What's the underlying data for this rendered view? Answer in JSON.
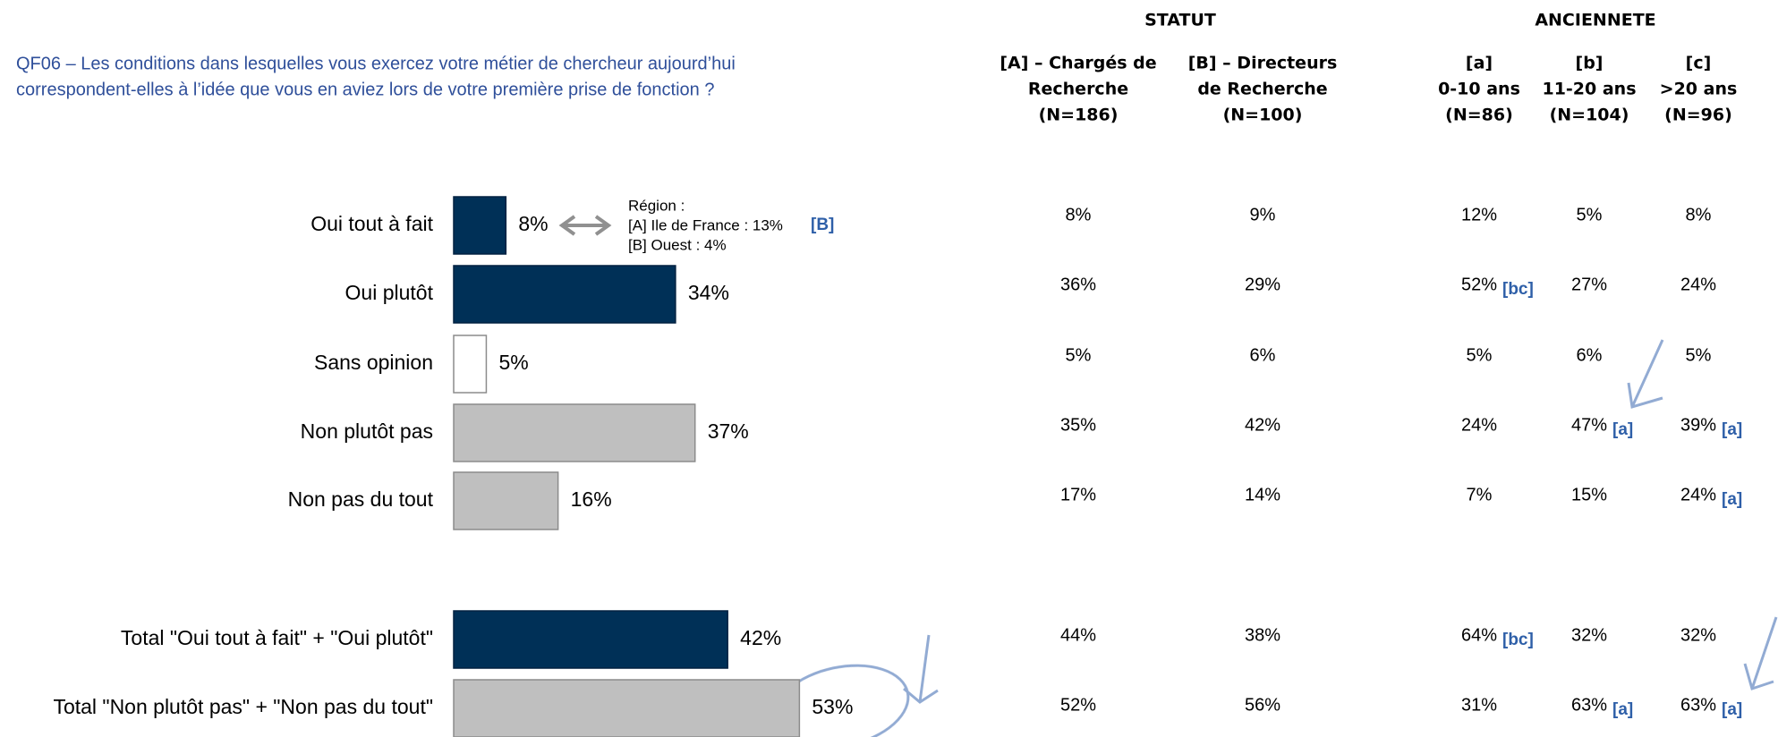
{
  "chart_data": {
    "type": "bar",
    "question": [
      "QF06  – Les conditions dans lesquelles vous exercez votre métier de chercheur aujourd’hui",
      "correspondent-elles à l’idée que vous en aviez lors de votre première prise de fonction ?"
    ],
    "categories": [
      "Oui tout à fait",
      "Oui plutôt",
      "Sans opinion",
      "Non plutôt pas",
      "Non pas du tout",
      "Total \"Oui tout à fait\" + \"Oui plutôt\"",
      "Total \"Non plutôt pas\" + \"Non pas du tout\""
    ],
    "values": [
      8,
      34,
      5,
      37,
      16,
      42,
      53
    ],
    "value_labels": [
      "8%",
      "34%",
      "5%",
      "37%",
      "16%",
      "42%",
      "53%"
    ],
    "colors": [
      "#003057",
      "#003057",
      "#ffffff",
      "#bfbfbf",
      "#bfbfbf",
      "#003057",
      "#bfbfbf"
    ],
    "annotation": {
      "lines": [
        "Région :",
        "[A] Ile de France : 13%",
        "[B] Ouest : 4%"
      ],
      "tag": "[B]"
    }
  },
  "table": {
    "groups": [
      "STATUT",
      "ANCIENNETE"
    ],
    "columns": [
      [
        "[A] – Chargés de",
        "Recherche",
        "(N=186)"
      ],
      [
        "[B] – Directeurs",
        "de Recherche",
        "(N=100)"
      ],
      [
        "[a]",
        "0-10 ans",
        "(N=86)"
      ],
      [
        "[b]",
        "11-20 ans",
        "(N=104)"
      ],
      [
        "[c]",
        ">20 ans",
        "(N=96)"
      ]
    ],
    "rows": [
      [
        {
          "text": "8%"
        },
        {
          "text": "9%"
        },
        {
          "text": "12%"
        },
        {
          "text": "5%"
        },
        {
          "text": "8%"
        }
      ],
      [
        {
          "text": "36%"
        },
        {
          "text": "29%"
        },
        {
          "text": "52%",
          "sig": "[bc]"
        },
        {
          "text": "27%"
        },
        {
          "text": "24%"
        }
      ],
      [
        {
          "text": "5%"
        },
        {
          "text": "6%"
        },
        {
          "text": "5%"
        },
        {
          "text": "6%"
        },
        {
          "text": "5%"
        }
      ],
      [
        {
          "text": "35%"
        },
        {
          "text": "42%"
        },
        {
          "text": "24%"
        },
        {
          "text": "47%",
          "sig": "[a]"
        },
        {
          "text": "39%",
          "sig": "[a]"
        }
      ],
      [
        {
          "text": "17%"
        },
        {
          "text": "14%"
        },
        {
          "text": "7%"
        },
        {
          "text": "15%"
        },
        {
          "text": "24%",
          "sig": "[a]"
        }
      ],
      [
        {
          "text": "44%"
        },
        {
          "text": "38%"
        },
        {
          "text": "64%",
          "sig": "[bc]"
        },
        {
          "text": "32%"
        },
        {
          "text": "32%"
        }
      ],
      [
        {
          "text": "52%"
        },
        {
          "text": "56%"
        },
        {
          "text": "31%"
        },
        {
          "text": "63%",
          "sig": "[a]"
        },
        {
          "text": "63%",
          "sig": "[a]"
        }
      ]
    ]
  }
}
